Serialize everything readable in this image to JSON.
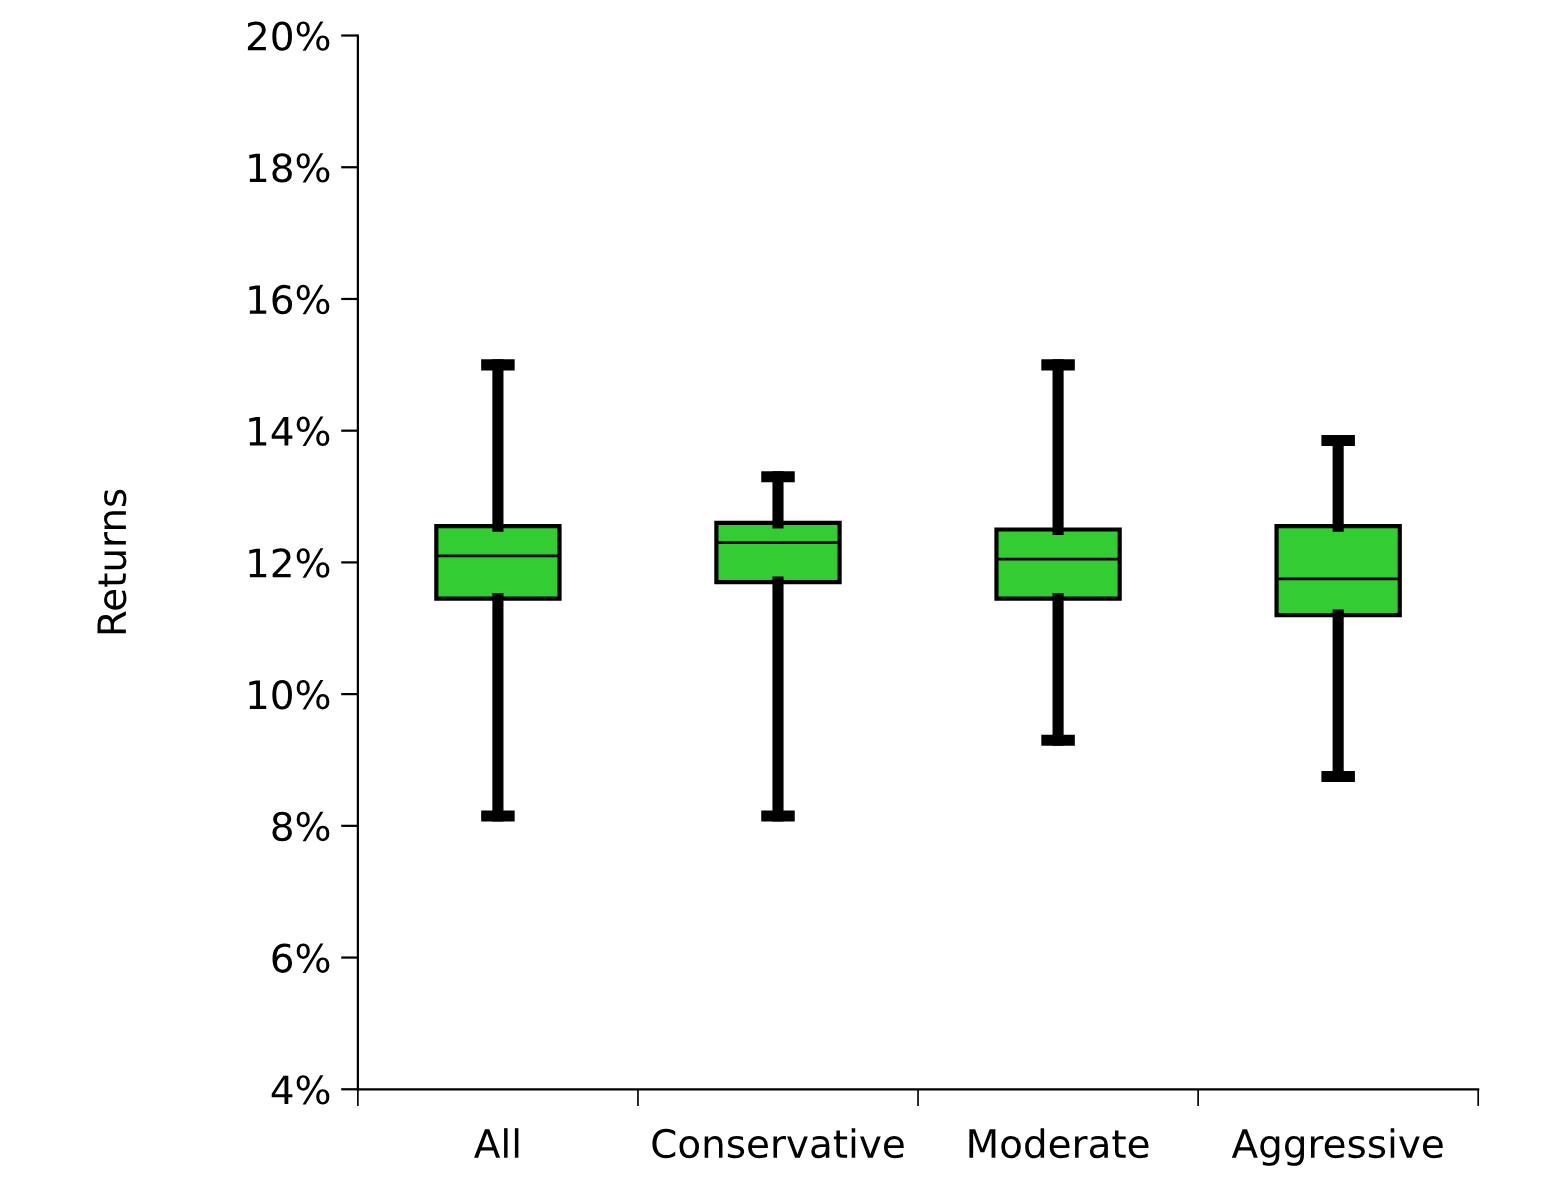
{
  "chart_data": {
    "type": "box",
    "ylabel": "Returns",
    "categories": [
      "All",
      "Conservative",
      "Moderate",
      "Aggressive"
    ],
    "boxes": [
      {
        "low": 8.15,
        "q1": 11.45,
        "median": 12.1,
        "q3": 12.55,
        "high": 15.0
      },
      {
        "low": 8.15,
        "q1": 11.7,
        "median": 12.3,
        "q3": 12.6,
        "high": 13.3
      },
      {
        "low": 9.3,
        "q1": 11.45,
        "median": 12.05,
        "q3": 12.5,
        "high": 15.0
      },
      {
        "low": 8.75,
        "q1": 11.2,
        "median": 11.75,
        "q3": 12.55,
        "high": 13.85
      }
    ],
    "color": "#33cc33",
    "ylim": [
      4,
      20
    ],
    "yticks": [
      {
        "value": 4,
        "label": "4%"
      },
      {
        "value": 6,
        "label": "6%"
      },
      {
        "value": 8,
        "label": "8%"
      },
      {
        "value": 10,
        "label": "10%"
      },
      {
        "value": 12,
        "label": "12%"
      },
      {
        "value": 14,
        "label": "14%"
      },
      {
        "value": 16,
        "label": "16%"
      },
      {
        "value": 18,
        "label": "18%"
      },
      {
        "value": 20,
        "label": "20%"
      }
    ],
    "grid": false
  }
}
